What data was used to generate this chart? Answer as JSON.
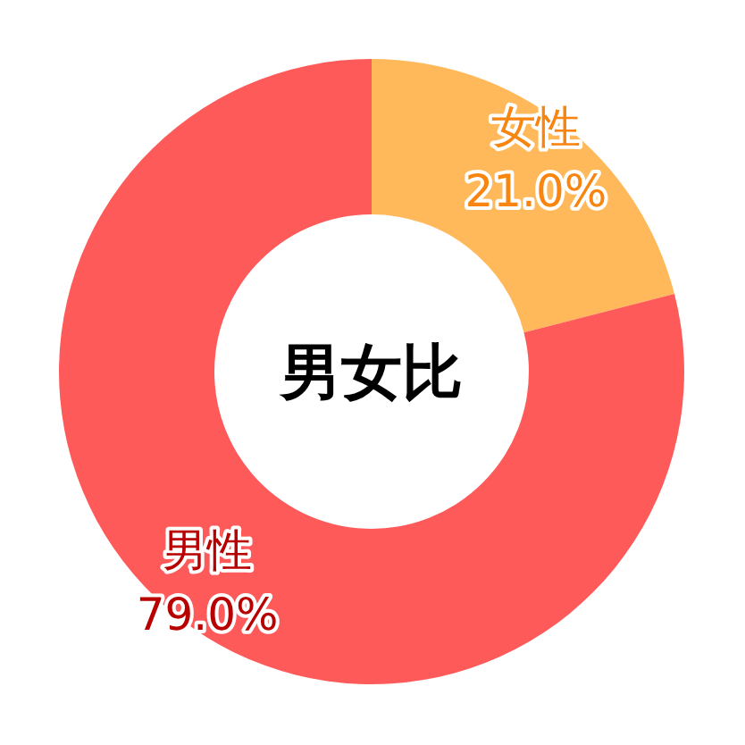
{
  "chart_data": {
    "type": "donut",
    "title": "男女比",
    "categories": [
      "女性",
      "男性"
    ],
    "values": [
      21.0,
      79.0
    ],
    "colors": [
      "#ffb95a",
      "#ff5a5a"
    ],
    "value_labels": [
      "21.0%",
      "79.0%"
    ]
  }
}
